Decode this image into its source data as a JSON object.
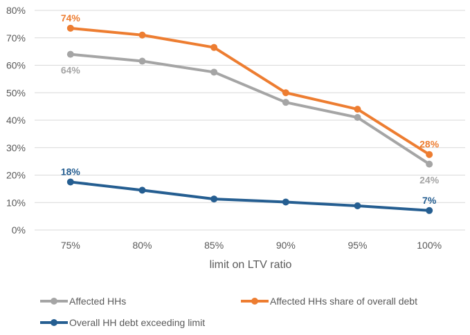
{
  "chart_data": {
    "type": "line",
    "title": "",
    "xlabel": "limit on LTV ratio",
    "ylabel": "",
    "categories": [
      "75%",
      "80%",
      "85%",
      "90%",
      "95%",
      "100%"
    ],
    "y_ticks": [
      "0%",
      "10%",
      "20%",
      "30%",
      "40%",
      "50%",
      "60%",
      "70%",
      "80%"
    ],
    "ylim": [
      0,
      80
    ],
    "grid": true,
    "legend_position": "bottom",
    "series": [
      {
        "name": "Affected HHs",
        "color": "#a5a5a5",
        "values": [
          64,
          61.5,
          57.5,
          46.5,
          41,
          24
        ],
        "labels": [
          {
            "index": 0,
            "text": "64%",
            "placement": "below"
          },
          {
            "index": 5,
            "text": "24%",
            "placement": "below"
          }
        ]
      },
      {
        "name": "Affected HHs share of overall debt",
        "color": "#ed7d31",
        "values": [
          73.5,
          71,
          66.5,
          50,
          44,
          27.5
        ],
        "labels": [
          {
            "index": 0,
            "text": "74%",
            "placement": "above"
          },
          {
            "index": 5,
            "text": "28%",
            "placement": "above"
          }
        ]
      },
      {
        "name": "Overall HH debt exceeding limit",
        "color": "#255e91",
        "values": [
          17.5,
          14.5,
          11.3,
          10.2,
          8.8,
          7.1
        ],
        "labels": [
          {
            "index": 0,
            "text": "18%",
            "placement": "above"
          },
          {
            "index": 5,
            "text": "7%",
            "placement": "above"
          }
        ]
      }
    ]
  }
}
